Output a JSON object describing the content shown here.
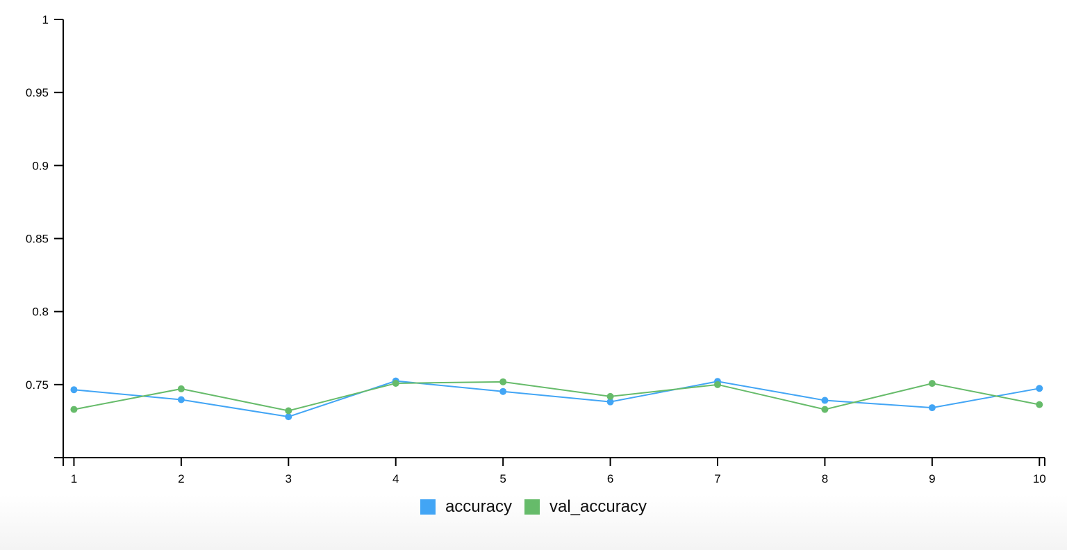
{
  "chart_data": {
    "type": "line",
    "x": [
      1,
      2,
      3,
      4,
      5,
      6,
      7,
      8,
      9,
      10
    ],
    "x_ticks": [
      "1",
      "2",
      "3",
      "4",
      "5",
      "6",
      "7",
      "8",
      "9",
      "10"
    ],
    "y_ticks": [
      "1",
      "0.95",
      "0.9",
      "0.85",
      "0.8",
      "0.75"
    ],
    "y_tick_values": [
      1,
      0.95,
      0.9,
      0.85,
      0.8,
      0.75
    ],
    "ylim": [
      0.7,
      1.0
    ],
    "xlim": [
      0.9,
      10.05
    ],
    "grid": false,
    "legend_position": "bottom-center",
    "series": [
      {
        "name": "accuracy",
        "color": "#42a5f5",
        "values": [
          0.7465,
          0.7397,
          0.728,
          0.7525,
          0.7453,
          0.7382,
          0.7522,
          0.7392,
          0.7342,
          0.7474
        ]
      },
      {
        "name": "val_accuracy",
        "color": "#66bb6a",
        "values": [
          0.733,
          0.7471,
          0.7321,
          0.7509,
          0.7519,
          0.7419,
          0.75,
          0.733,
          0.7508,
          0.7363
        ]
      }
    ]
  }
}
